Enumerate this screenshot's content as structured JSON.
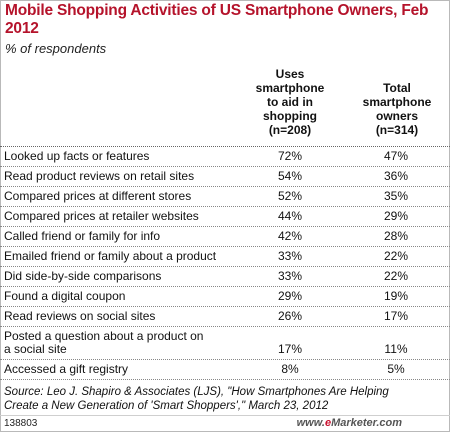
{
  "chart_data": {
    "type": "table",
    "title": "Mobile Shopping Activities of US Smartphone Owners, Feb 2012",
    "subtitle": "% of respondents",
    "columns": [
      "Uses smartphone to aid in shopping (n=208)",
      "Total smartphone owners (n=314)"
    ],
    "column_lines": [
      [
        "Uses",
        "smartphone",
        "to aid in",
        "shopping",
        "(n=208)"
      ],
      [
        "Total",
        "smartphone",
        "owners",
        "(n=314)"
      ]
    ],
    "rows": [
      {
        "label": [
          "Looked up facts or features"
        ],
        "values": [
          "72%",
          "47%"
        ]
      },
      {
        "label": [
          "Read product reviews on retail sites"
        ],
        "values": [
          "54%",
          "36%"
        ]
      },
      {
        "label": [
          "Compared prices at different stores"
        ],
        "values": [
          "52%",
          "35%"
        ]
      },
      {
        "label": [
          "Compared prices at retailer websites"
        ],
        "values": [
          "44%",
          "29%"
        ]
      },
      {
        "label": [
          "Called friend or family for info"
        ],
        "values": [
          "42%",
          "28%"
        ]
      },
      {
        "label": [
          "Emailed friend or family about a product"
        ],
        "values": [
          "33%",
          "22%"
        ]
      },
      {
        "label": [
          "Did side-by-side comparisons"
        ],
        "values": [
          "33%",
          "22%"
        ]
      },
      {
        "label": [
          "Found a digital coupon"
        ],
        "values": [
          "29%",
          "19%"
        ]
      },
      {
        "label": [
          "Read reviews on social sites"
        ],
        "values": [
          "26%",
          "17%"
        ]
      },
      {
        "label": [
          "Posted a question about a product on",
          "a social site"
        ],
        "values": [
          "17%",
          "11%"
        ]
      },
      {
        "label": [
          "Accessed a gift registry"
        ],
        "values": [
          "8%",
          "5%"
        ]
      }
    ]
  },
  "source": [
    "Source: Leo J. Shapiro & Associates (LJS), \"How Smartphones Are Helping",
    "Create a New Generation of 'Smart Shoppers',\" March 23, 2012"
  ],
  "footer": {
    "code": "138803",
    "brand_prefix": "www.",
    "brand_e": "e",
    "brand_rest": "Marketer.com"
  }
}
